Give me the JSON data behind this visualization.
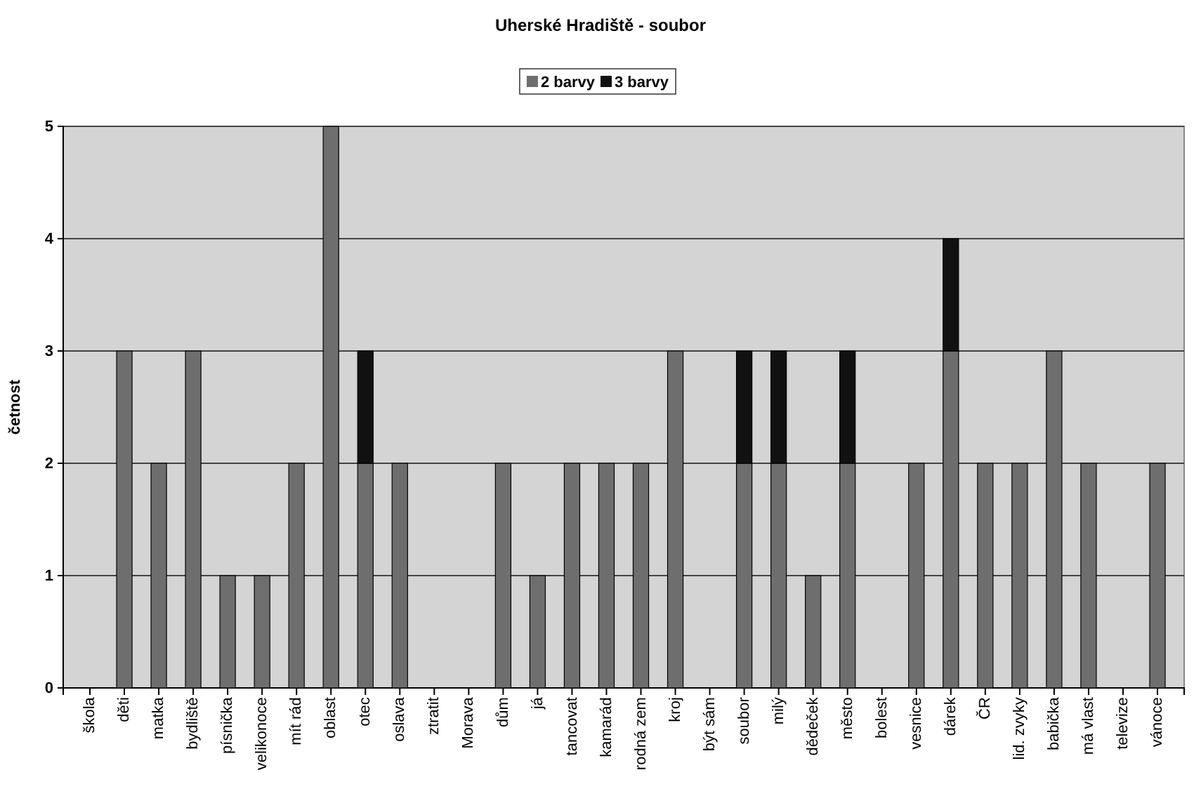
{
  "chart_data": {
    "type": "bar",
    "title": "Uherské Hradiště - soubor",
    "ylabel": "četnost",
    "stacked": true,
    "legend": "top",
    "grid": "y",
    "categories": [
      "škola",
      "děti",
      "matka",
      "bydliště",
      "písnička",
      "velikonoce",
      "mít rád",
      "oblast",
      "otec",
      "oslava",
      "ztratit",
      "Morava",
      "dům",
      "já",
      "tancovat",
      "kamarád",
      "rodná zem",
      "kroj",
      "být sám",
      "soubor",
      "milý",
      "dědeček",
      "město",
      "bolest",
      "vesnice",
      "dárek",
      "ČR",
      "lid. zvyky",
      "babička",
      "má vlast",
      "televize",
      "vánoce"
    ],
    "series": [
      {
        "name": "2 barvy",
        "color": "#6e6e6e",
        "values": [
          0,
          3,
          2,
          3,
          1,
          1,
          2,
          5,
          2,
          2,
          0,
          0,
          2,
          1,
          2,
          2,
          2,
          3,
          0,
          2,
          2,
          1,
          2,
          0,
          2,
          3,
          2,
          2,
          3,
          2,
          0,
          2
        ]
      },
      {
        "name": "3 barvy",
        "color": "#111111",
        "values": [
          0,
          0,
          0,
          0,
          0,
          0,
          0,
          0,
          1,
          0,
          0,
          0,
          0,
          0,
          0,
          0,
          0,
          0,
          0,
          1,
          1,
          0,
          1,
          0,
          0,
          1,
          0,
          0,
          0,
          0,
          0,
          0
        ]
      }
    ],
    "ylim": [
      0,
      5
    ],
    "yticks": [
      0,
      1,
      2,
      3,
      4,
      5
    ]
  }
}
